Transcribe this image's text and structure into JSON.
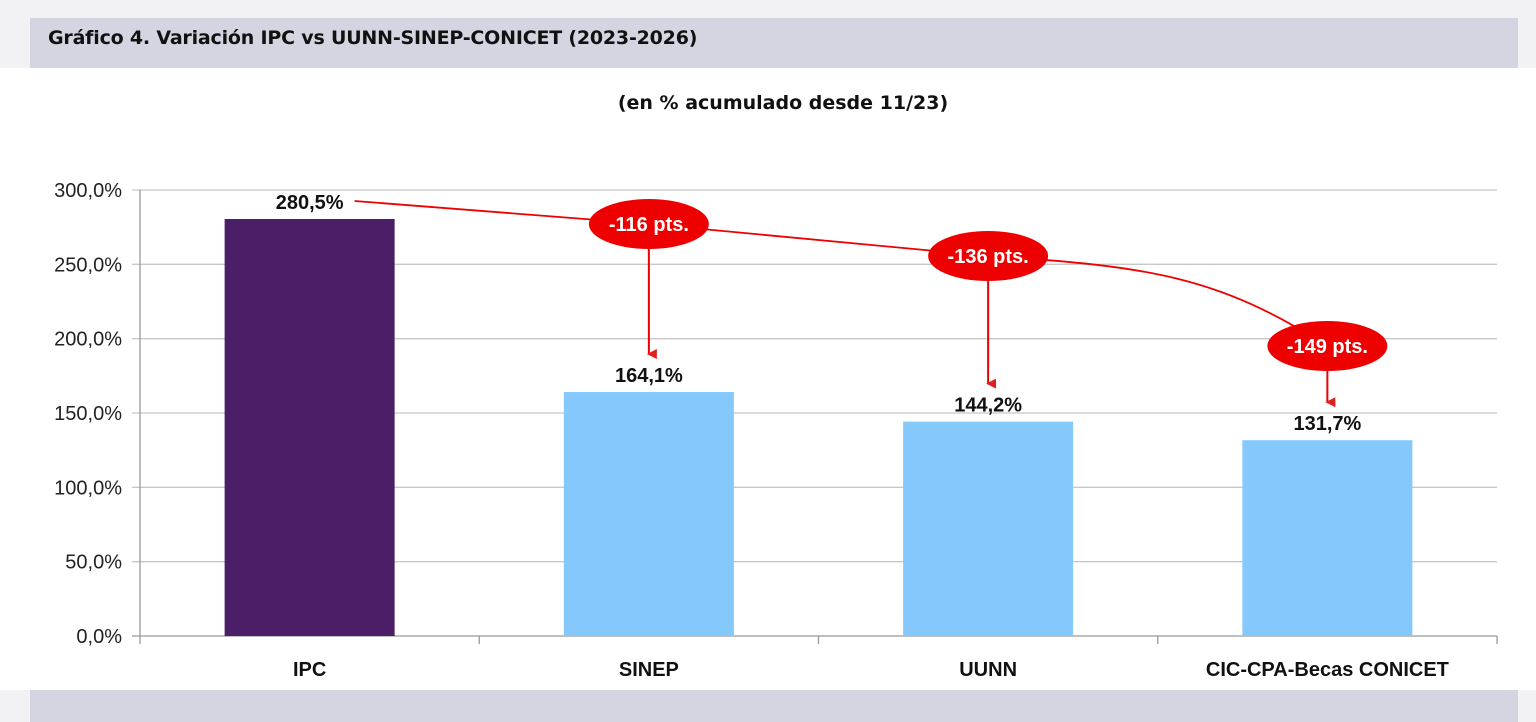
{
  "header": {
    "title": "Gráfico 4. Variación IPC vs UUNN-SINEP-CONICET (2023-2026)"
  },
  "chart_data": {
    "type": "bar",
    "subtitle": "(en % acumulado desde 11/23)",
    "categories": [
      "IPC",
      "SINEP",
      "UUNN",
      "CIC-CPA-Becas CONICET"
    ],
    "values": [
      280.5,
      164.1,
      144.2,
      131.7
    ],
    "data_labels": [
      "280,5%",
      "164,1%",
      "144,2%",
      "131,7%"
    ],
    "bar_colors": [
      "#4b1f68",
      "#85c9fc",
      "#85c9fc",
      "#85c9fc"
    ],
    "ylim": [
      0,
      300
    ],
    "yticks": [
      0,
      50,
      100,
      150,
      200,
      250,
      300
    ],
    "ytick_labels": [
      "0,0%",
      "50,0%",
      "100,0%",
      "150,0%",
      "200,0%",
      "250,0%",
      "300,0%"
    ],
    "xlabel": "",
    "ylabel": "",
    "grid": true,
    "legend": false,
    "annotations": [
      {
        "text": "-116 pts.",
        "target_category": "SINEP"
      },
      {
        "text": "-136 pts.",
        "target_category": "UUNN"
      },
      {
        "text": "-149 pts.",
        "target_category": "CIC-CPA-Becas CONICET"
      }
    ],
    "annotation_color": "#ee0000"
  }
}
